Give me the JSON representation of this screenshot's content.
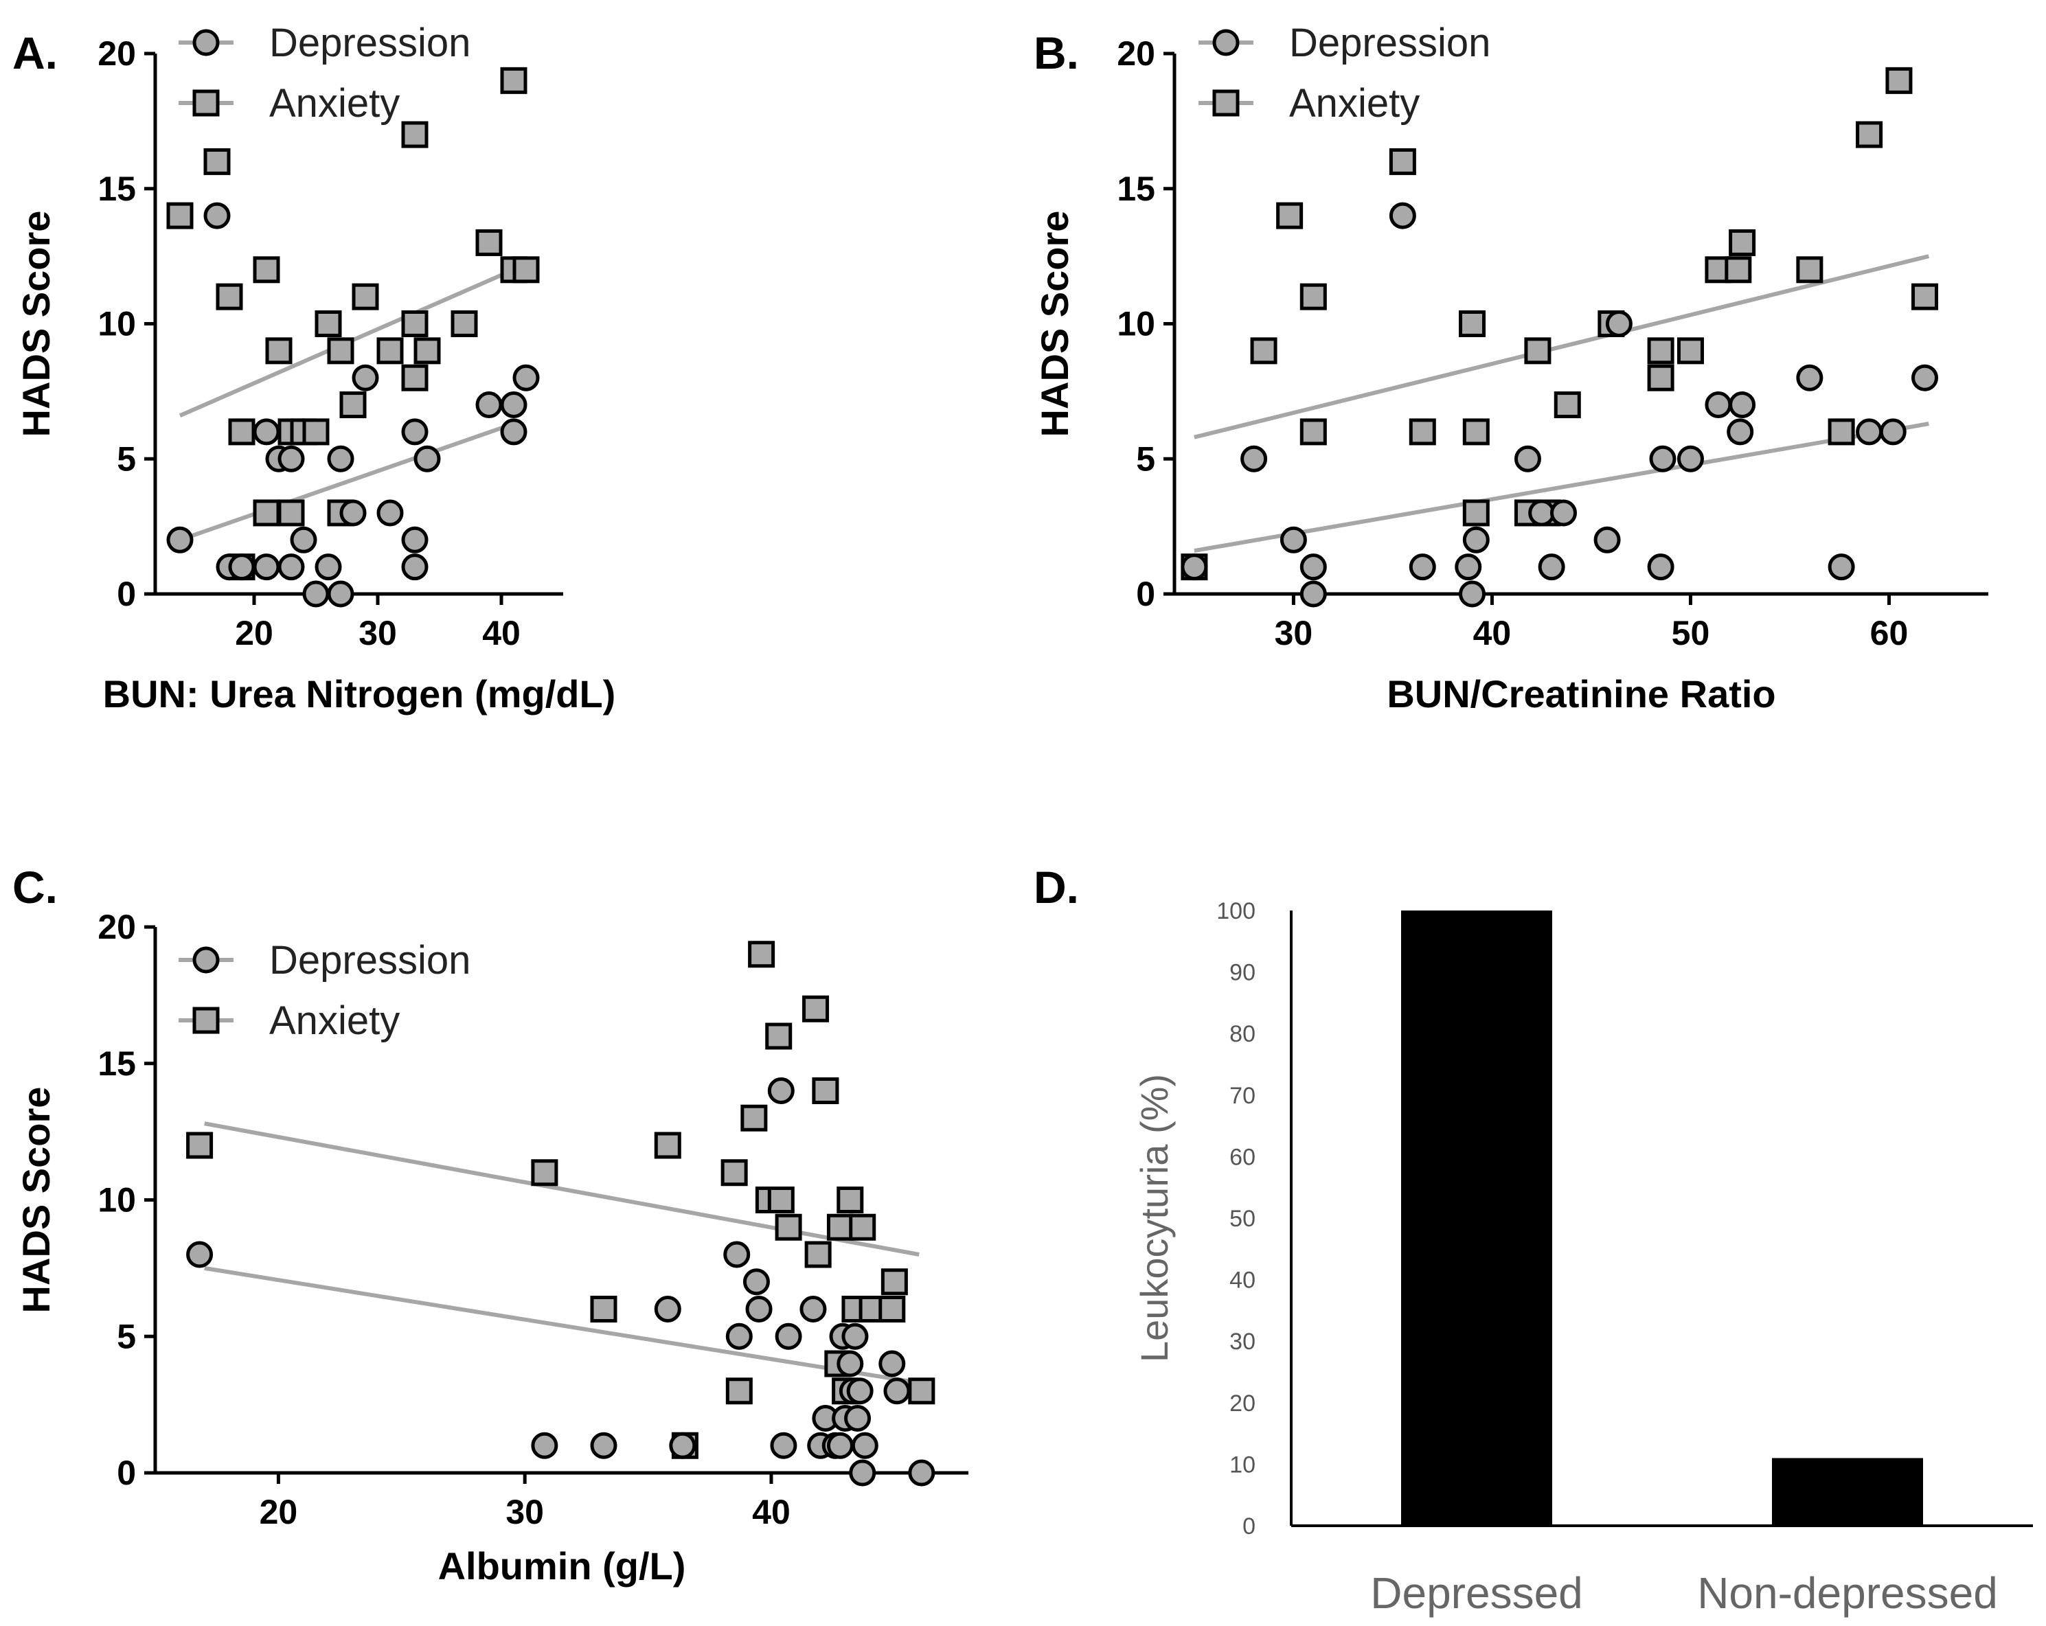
{
  "chart_data": [
    {
      "panel": "A.",
      "type": "scatter",
      "xlabel": "BUN: Urea Nitrogen (mg/dL)",
      "ylabel": "HADS Score",
      "xlim": [
        12,
        45
      ],
      "ylim": [
        0,
        20
      ],
      "xticks": [
        20,
        30,
        40
      ],
      "yticks": [
        0,
        5,
        10,
        15,
        20
      ],
      "legend": "top-left",
      "series": [
        {
          "name": "Depression",
          "marker": "circle",
          "points": [
            [
              14,
              2
            ],
            [
              17,
              14
            ],
            [
              18,
              1
            ],
            [
              19,
              1
            ],
            [
              21,
              1
            ],
            [
              21,
              6
            ],
            [
              22,
              5
            ],
            [
              23,
              5
            ],
            [
              23,
              1
            ],
            [
              24,
              2
            ],
            [
              25,
              0
            ],
            [
              26,
              1
            ],
            [
              27,
              0
            ],
            [
              27,
              5
            ],
            [
              28,
              3
            ],
            [
              29,
              8
            ],
            [
              31,
              3
            ],
            [
              33,
              6
            ],
            [
              33,
              2
            ],
            [
              33,
              1
            ],
            [
              34,
              5
            ],
            [
              39,
              7
            ],
            [
              41,
              7
            ],
            [
              41,
              6
            ],
            [
              42,
              8
            ]
          ],
          "trend": [
            [
              14,
              2.0
            ],
            [
              41,
              6.3
            ]
          ]
        },
        {
          "name": "Anxiety",
          "marker": "square",
          "points": [
            [
              14,
              14
            ],
            [
              17,
              16
            ],
            [
              18,
              11
            ],
            [
              19,
              6
            ],
            [
              19,
              1
            ],
            [
              21,
              12
            ],
            [
              21,
              3
            ],
            [
              22,
              9
            ],
            [
              23,
              6
            ],
            [
              23,
              3
            ],
            [
              24,
              6
            ],
            [
              25,
              6
            ],
            [
              26,
              10
            ],
            [
              27,
              9
            ],
            [
              27,
              3
            ],
            [
              28,
              7
            ],
            [
              29,
              11
            ],
            [
              31,
              9
            ],
            [
              33,
              17
            ],
            [
              33,
              10
            ],
            [
              33,
              8
            ],
            [
              34,
              9
            ],
            [
              37,
              10
            ],
            [
              39,
              13
            ],
            [
              41,
              19
            ],
            [
              41,
              12
            ],
            [
              42,
              12
            ]
          ],
          "trend": [
            [
              14,
              6.6
            ],
            [
              41,
              12.0
            ]
          ]
        }
      ]
    },
    {
      "panel": "B.",
      "type": "scatter",
      "xlabel": "BUN/Creatinine Ratio",
      "ylabel": "HADS Score",
      "xlim": [
        24,
        65
      ],
      "ylim": [
        0,
        20
      ],
      "xticks": [
        30,
        40,
        50,
        60
      ],
      "yticks": [
        0,
        5,
        10,
        15,
        20
      ],
      "legend": "top-left",
      "series": [
        {
          "name": "Depression",
          "marker": "circle",
          "points": [
            [
              25,
              1
            ],
            [
              28,
              5
            ],
            [
              30,
              2
            ],
            [
              31,
              0
            ],
            [
              31,
              1
            ],
            [
              35.5,
              14
            ],
            [
              36.5,
              1
            ],
            [
              38.8,
              1
            ],
            [
              39,
              0
            ],
            [
              39.2,
              2
            ],
            [
              41.8,
              5
            ],
            [
              42.5,
              3
            ],
            [
              43,
              1
            ],
            [
              43.6,
              3
            ],
            [
              45.8,
              2
            ],
            [
              46.4,
              10
            ],
            [
              48.5,
              1
            ],
            [
              48.6,
              5
            ],
            [
              50,
              5
            ],
            [
              51.4,
              7
            ],
            [
              52.6,
              7
            ],
            [
              52.5,
              6
            ],
            [
              56,
              8
            ],
            [
              57.6,
              1
            ],
            [
              59,
              6
            ],
            [
              60.2,
              6
            ],
            [
              61.8,
              8
            ]
          ],
          "trend": [
            [
              25,
              1.6
            ],
            [
              62,
              6.3
            ]
          ]
        },
        {
          "name": "Anxiety",
          "marker": "square",
          "points": [
            [
              25,
              1
            ],
            [
              28.5,
              9
            ],
            [
              29.8,
              14
            ],
            [
              31,
              11
            ],
            [
              31,
              6
            ],
            [
              35.5,
              16
            ],
            [
              36.5,
              6
            ],
            [
              39,
              10
            ],
            [
              39.2,
              6
            ],
            [
              39.2,
              3
            ],
            [
              41.8,
              3
            ],
            [
              42.3,
              9
            ],
            [
              42.8,
              3
            ],
            [
              43.8,
              7
            ],
            [
              46,
              10
            ],
            [
              48.5,
              9
            ],
            [
              48.5,
              8
            ],
            [
              50,
              9
            ],
            [
              51.4,
              12
            ],
            [
              52.4,
              12
            ],
            [
              52.6,
              13
            ],
            [
              56,
              12
            ],
            [
              57.6,
              6
            ],
            [
              59,
              17
            ],
            [
              60.5,
              19
            ],
            [
              61.8,
              11
            ]
          ],
          "trend": [
            [
              25,
              5.8
            ],
            [
              62,
              12.5
            ]
          ]
        }
      ]
    },
    {
      "panel": "C.",
      "type": "scatter",
      "xlabel": "Albumin (g/L)",
      "ylabel": "HADS Score",
      "xlim": [
        15,
        48
      ],
      "ylim": [
        0,
        20
      ],
      "xticks": [
        20,
        30,
        40
      ],
      "yticks": [
        0,
        5,
        10,
        15,
        20
      ],
      "legend": "top-left",
      "series": [
        {
          "name": "Depression",
          "marker": "circle",
          "points": [
            [
              16.8,
              8
            ],
            [
              30.8,
              1
            ],
            [
              33.2,
              1
            ],
            [
              35.8,
              6
            ],
            [
              36.4,
              1
            ],
            [
              38.6,
              8
            ],
            [
              38.7,
              5
            ],
            [
              39.4,
              7
            ],
            [
              39.5,
              6
            ],
            [
              40.4,
              14
            ],
            [
              40.5,
              1
            ],
            [
              40.7,
              5
            ],
            [
              41.7,
              6
            ],
            [
              42,
              1
            ],
            [
              42.2,
              2
            ],
            [
              42.6,
              1
            ],
            [
              42.9,
              5
            ],
            [
              42.8,
              1
            ],
            [
              43.2,
              4
            ],
            [
              43,
              2
            ],
            [
              43.3,
              3
            ],
            [
              43.4,
              5
            ],
            [
              43.5,
              2
            ],
            [
              43.6,
              3
            ],
            [
              43.7,
              0
            ],
            [
              43.8,
              1
            ],
            [
              44.9,
              4
            ],
            [
              45.1,
              3
            ],
            [
              46.1,
              0
            ]
          ],
          "trend": [
            [
              17,
              7.5
            ],
            [
              46,
              3.3
            ]
          ]
        },
        {
          "name": "Anxiety",
          "marker": "square",
          "points": [
            [
              16.8,
              12
            ],
            [
              30.8,
              11
            ],
            [
              33.2,
              6
            ],
            [
              35.8,
              12
            ],
            [
              36.5,
              1
            ],
            [
              38.5,
              11
            ],
            [
              38.7,
              3
            ],
            [
              39.3,
              13
            ],
            [
              39.6,
              19
            ],
            [
              39.9,
              10
            ],
            [
              40.4,
              10
            ],
            [
              40.3,
              16
            ],
            [
              40.7,
              9
            ],
            [
              41.8,
              17
            ],
            [
              41.9,
              8
            ],
            [
              42.2,
              14
            ],
            [
              42.7,
              4
            ],
            [
              42.8,
              9
            ],
            [
              43,
              3
            ],
            [
              43.2,
              10
            ],
            [
              43.4,
              6
            ],
            [
              43.7,
              9
            ],
            [
              44.1,
              6
            ],
            [
              44.9,
              6
            ],
            [
              45,
              7
            ],
            [
              46.1,
              3
            ]
          ],
          "trend": [
            [
              17,
              12.8
            ],
            [
              46,
              8.0
            ]
          ]
        }
      ]
    },
    {
      "panel": "D.",
      "type": "bar",
      "ylabel": "Leukocyturia (%)",
      "categories": [
        "Depressed",
        "Non-depressed"
      ],
      "values": [
        100,
        11
      ],
      "ylim": [
        0,
        100
      ],
      "yticks": [
        0,
        10,
        20,
        30,
        40,
        50,
        60,
        70,
        80,
        90,
        100
      ]
    }
  ]
}
